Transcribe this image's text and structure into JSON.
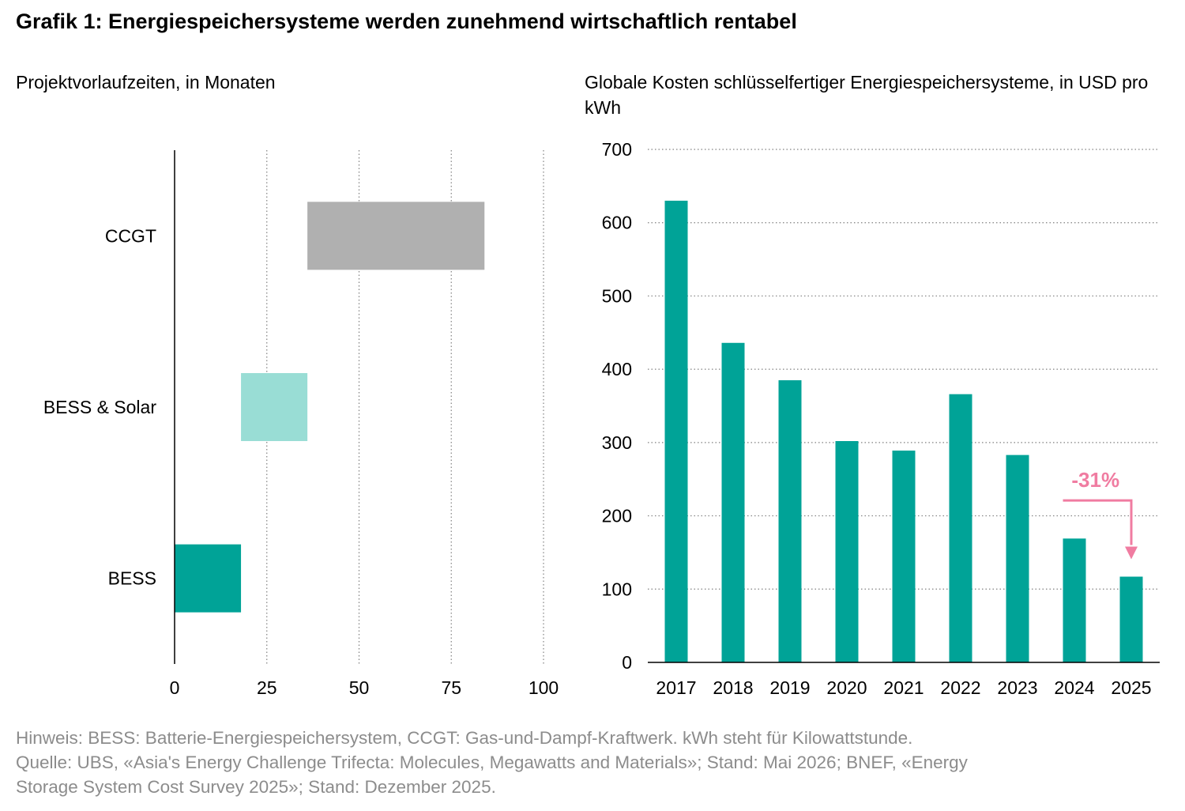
{
  "title": "Grafik 1: Energiespeichersysteme werden zunehmend wirtschaftlich rentabel",
  "colors": {
    "teal": "#00a397",
    "light_teal": "#99ddd5",
    "gray": "#b0b0b0",
    "annotation_pink": "#f07ca1"
  },
  "chart_data": [
    {
      "type": "bar",
      "orientation": "horizontal-range",
      "title": "Projektvorlaufzeiten, in Monaten",
      "categories": [
        "CCGT",
        "BESS & Solar",
        "BESS"
      ],
      "ranges": [
        {
          "label": "CCGT",
          "start": 36,
          "end": 84,
          "color": "#b0b0b0"
        },
        {
          "label": "BESS & Solar",
          "start": 18,
          "end": 36,
          "color": "#99ddd5"
        },
        {
          "label": "BESS",
          "start": 0,
          "end": 18,
          "color": "#00a397"
        }
      ],
      "xlim": [
        0,
        100
      ],
      "xticks": [
        "0",
        "25",
        "50",
        "75",
        "100"
      ],
      "grid": "vertical dotted"
    },
    {
      "type": "bar",
      "title": "Globale Kosten schlüsselfertiger Energiespeichersysteme, in USD pro kWh",
      "categories": [
        "2017",
        "2018",
        "2019",
        "2020",
        "2021",
        "2022",
        "2023",
        "2024",
        "2025"
      ],
      "values": [
        630,
        436,
        385,
        302,
        289,
        366,
        283,
        169,
        117
      ],
      "ylim": [
        0,
        700
      ],
      "yticks": [
        "0",
        "100",
        "200",
        "300",
        "400",
        "500",
        "600",
        "700"
      ],
      "grid": "horizontal dotted",
      "annotation": {
        "text": "-31%",
        "from": "2024",
        "to": "2025"
      }
    }
  ],
  "footer": {
    "line1": "Hinweis: BESS: Batterie-Energiespeichersystem, CCGT: Gas-und-Dampf-Kraftwerk. kWh steht für Kilowattstunde.",
    "line2": "Quelle: UBS, «Asia's Energy Challenge Trifecta: Molecules, Megawatts and Materials»; Stand: Mai 2026; BNEF, «Energy",
    "line3": "Storage System Cost Survey 2025»; Stand: Dezember 2025."
  }
}
